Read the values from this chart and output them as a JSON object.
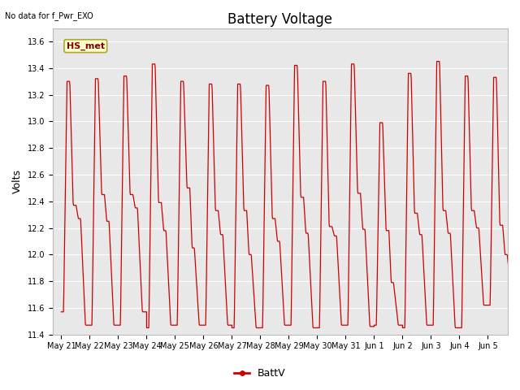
{
  "title": "Battery Voltage",
  "ylabel": "Volts",
  "top_left_note": "No data for f_Pwr_EXO",
  "legend_label": "BattV",
  "legend_line_color": "#cc0000",
  "line_color": "#cc0000",
  "ylim": [
    11.4,
    13.7
  ],
  "yticks": [
    11.4,
    11.6,
    11.8,
    12.0,
    12.2,
    12.4,
    12.6,
    12.8,
    13.0,
    13.2,
    13.4,
    13.6
  ],
  "xtick_labels": [
    "May 21",
    "May 22",
    "May 23",
    "May 24",
    "May 25",
    "May 26",
    "May 27",
    "May 28",
    "May 29",
    "May 30",
    "May 31",
    "Jun 1",
    "Jun 2",
    "Jun 3",
    "Jun 4",
    "Jun 5"
  ],
  "plot_bg_color": "#e8e8e8",
  "hs_met_label": "HS_met",
  "hs_met_box_color": "#ffffcc",
  "hs_met_text_color": "#800000",
  "hs_met_border_color": "#aaa830",
  "title_fontsize": 12,
  "ylabel_fontsize": 9,
  "tick_fontsize": 7,
  "note_fontsize": 7,
  "legend_fontsize": 9
}
